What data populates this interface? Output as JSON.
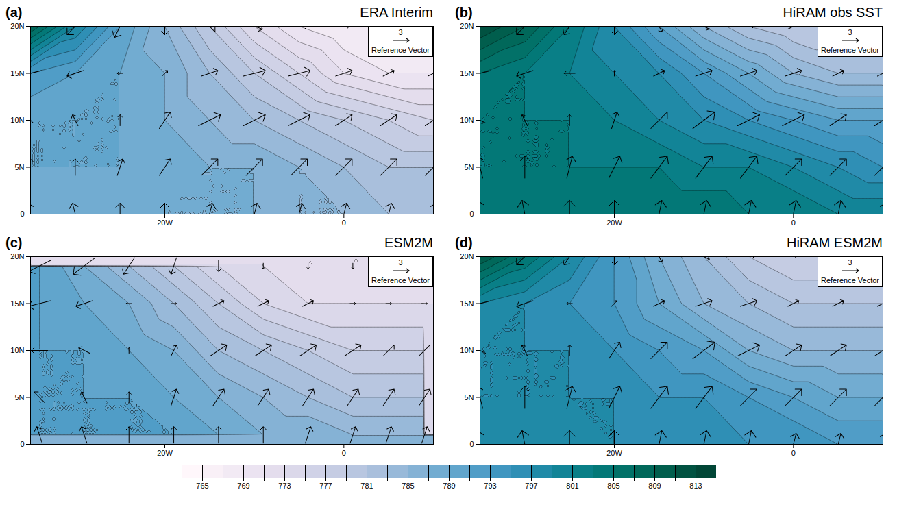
{
  "chart_data": [
    {
      "type": "contour",
      "panel": "(a)",
      "title": "ERA Interim",
      "lon": [
        -35,
        -30,
        -25,
        -20,
        -15,
        -10,
        -5,
        0,
        5,
        10
      ],
      "lat": [
        0,
        5,
        10,
        15,
        20
      ],
      "values": [
        [
          787,
          787,
          787,
          787,
          787,
          787,
          785,
          785,
          783,
          783
        ],
        [
          789,
          789,
          789,
          789,
          787,
          787,
          785,
          783,
          781,
          781
        ],
        [
          789,
          789,
          789,
          787,
          785,
          783,
          781,
          779,
          777,
          775
        ],
        [
          793,
          791,
          789,
          787,
          783,
          779,
          775,
          771,
          769,
          769
        ],
        [
          809,
          799,
          791,
          785,
          779,
          773,
          769,
          767,
          767,
          767
        ]
      ],
      "u": [
        [
          -1,
          -1,
          0,
          0,
          1,
          1,
          1,
          1,
          1,
          1
        ],
        [
          0,
          0,
          1,
          2,
          3,
          3,
          3,
          3,
          3,
          3
        ],
        [
          -1,
          -1,
          0,
          2,
          4,
          4,
          4,
          3,
          3,
          3
        ],
        [
          -4,
          -3,
          -1,
          1,
          3,
          4,
          4,
          3,
          2,
          2
        ],
        [
          -4,
          -3,
          -2,
          0,
          2,
          3,
          3,
          2,
          1,
          1
        ]
      ],
      "v": [
        [
          4,
          4,
          4,
          4,
          4,
          4,
          4,
          4,
          4,
          4
        ],
        [
          3,
          3,
          3,
          3,
          3,
          3,
          3,
          3,
          3,
          3
        ],
        [
          1,
          2,
          2,
          3,
          2,
          2,
          2,
          2,
          2,
          2
        ],
        [
          -1,
          -1,
          0,
          1,
          1,
          1,
          1,
          1,
          1,
          1
        ],
        [
          -3,
          -3,
          -4,
          -3,
          -2,
          -1,
          0,
          0,
          0,
          0
        ]
      ],
      "xlim": [
        -35,
        10
      ],
      "ylim": [
        0,
        20
      ],
      "xticks": [
        {
          "value": -20,
          "label": "20W"
        },
        0
      ],
      "yticks": [
        0,
        {
          "value": 5,
          "label": "5N"
        },
        {
          "value": 10,
          "label": "10N"
        },
        {
          "value": 15,
          "label": "15N"
        },
        {
          "value": 20,
          "label": "20N"
        }
      ],
      "reference_vector": {
        "value": 3,
        "label": "Reference Vector"
      }
    },
    {
      "type": "contour",
      "panel": "(b)",
      "title": "HiRAM obs SST",
      "lon": [
        -35,
        -30,
        -25,
        -20,
        -15,
        -10,
        -5,
        0,
        5,
        10
      ],
      "lat": [
        0,
        5,
        10,
        15,
        20
      ],
      "values": [
        [
          805,
          805,
          805,
          805,
          805,
          805,
          803,
          803,
          801,
          801
        ],
        [
          803,
          803,
          803,
          803,
          803,
          801,
          801,
          799,
          797,
          795
        ],
        [
          803,
          803,
          803,
          801,
          799,
          797,
          795,
          793,
          791,
          791
        ],
        [
          805,
          803,
          801,
          799,
          797,
          793,
          789,
          785,
          783,
          783
        ],
        [
          813,
          809,
          803,
          797,
          791,
          785,
          781,
          779,
          779,
          779
        ]
      ],
      "u": [
        [
          -1,
          -1,
          0,
          0,
          1,
          1,
          1,
          1,
          1,
          1
        ],
        [
          -1,
          0,
          1,
          2,
          3,
          3,
          3,
          3,
          3,
          3
        ],
        [
          -2,
          -1,
          0,
          1,
          3,
          4,
          4,
          4,
          3,
          3
        ],
        [
          -4,
          -3,
          -2,
          0,
          2,
          3,
          3,
          3,
          2,
          2
        ],
        [
          -4,
          -3,
          -2,
          0,
          1,
          2,
          2,
          2,
          1,
          1
        ]
      ],
      "v": [
        [
          5,
          5,
          5,
          5,
          5,
          5,
          5,
          5,
          5,
          4
        ],
        [
          4,
          4,
          4,
          4,
          4,
          4,
          4,
          3,
          3,
          3
        ],
        [
          1,
          2,
          2,
          3,
          3,
          3,
          2,
          2,
          2,
          2
        ],
        [
          -1,
          -1,
          0,
          1,
          1,
          1,
          1,
          1,
          1,
          1
        ],
        [
          -3,
          -3,
          -3,
          -3,
          -2,
          -1,
          0,
          1,
          1,
          1
        ]
      ],
      "xlim": [
        -35,
        10
      ],
      "ylim": [
        0,
        20
      ],
      "xticks": [
        {
          "value": -20,
          "label": "20W"
        },
        0
      ],
      "yticks": [
        0,
        {
          "value": 5,
          "label": "5N"
        },
        {
          "value": 10,
          "label": "10N"
        },
        {
          "value": 15,
          "label": "15N"
        },
        {
          "value": 20,
          "label": "20N"
        }
      ],
      "reference_vector": {
        "value": 3,
        "label": "Reference Vector"
      }
    },
    {
      "type": "contour",
      "panel": "(c)",
      "title": "ESM2M",
      "lon": [
        -34,
        -29,
        -24,
        -19,
        -14,
        -9,
        -4,
        1,
        5,
        9
      ],
      "lat": [
        1,
        5,
        10,
        15,
        19
      ],
      "values": [
        [
          791,
          791,
          791,
          791,
          789,
          787,
          787,
          785,
          785,
          785
        ],
        [
          791,
          791,
          791,
          789,
          787,
          785,
          783,
          781,
          781,
          781
        ],
        [
          791,
          791,
          789,
          787,
          783,
          781,
          779,
          777,
          777,
          777
        ],
        [
          791,
          789,
          787,
          783,
          779,
          775,
          773,
          773,
          773,
          773
        ],
        [
          791,
          787,
          783,
          779,
          775,
          773,
          771,
          771,
          771,
          771
        ]
      ],
      "u": [
        [
          -1,
          -1,
          0,
          0,
          0,
          0,
          1,
          1,
          1,
          1
        ],
        [
          -2,
          -1,
          0,
          1,
          2,
          2,
          2,
          2,
          2,
          2
        ],
        [
          -3,
          -2,
          0,
          1,
          3,
          3,
          3,
          3,
          2,
          2
        ],
        [
          -4,
          -3,
          -1,
          1,
          2,
          2,
          2,
          1,
          1,
          1
        ],
        [
          -4,
          -4,
          -2,
          -1,
          0,
          0,
          0,
          0,
          0,
          0
        ]
      ],
      "v": [
        [
          3,
          3,
          3,
          3,
          3,
          3,
          3,
          3,
          3,
          3
        ],
        [
          2,
          2,
          2,
          3,
          3,
          3,
          3,
          3,
          3,
          3
        ],
        [
          0,
          1,
          1,
          2,
          2,
          2,
          2,
          2,
          2,
          2
        ],
        [
          -1,
          -1,
          0,
          0,
          1,
          1,
          1,
          0,
          0,
          0
        ],
        [
          -2,
          -3,
          -3,
          -3,
          -2,
          -1,
          -1,
          -1,
          -1,
          -1
        ]
      ],
      "xlim": [
        -35,
        10
      ],
      "ylim": [
        0,
        20
      ],
      "xticks": [
        {
          "value": -20,
          "label": "20W"
        },
        0
      ],
      "yticks": [
        0,
        {
          "value": 5,
          "label": "5N"
        },
        {
          "value": 10,
          "label": "10N"
        },
        {
          "value": 15,
          "label": "15N"
        },
        {
          "value": 20,
          "label": "20N"
        }
      ],
      "reference_vector": {
        "value": 3,
        "label": "Reference Vector"
      }
    },
    {
      "type": "contour",
      "panel": "(d)",
      "title": "HiRAM ESM2M",
      "lon": [
        -35,
        -30,
        -25,
        -20,
        -15,
        -10,
        -5,
        0,
        5,
        10
      ],
      "lat": [
        0,
        5,
        10,
        15,
        20
      ],
      "values": [
        [
          799,
          799,
          799,
          797,
          797,
          797,
          795,
          795,
          793,
          793
        ],
        [
          797,
          797,
          797,
          797,
          795,
          795,
          793,
          791,
          789,
          789
        ],
        [
          797,
          797,
          797,
          795,
          793,
          791,
          787,
          785,
          785,
          785
        ],
        [
          799,
          797,
          795,
          793,
          789,
          785,
          783,
          781,
          781,
          781
        ],
        [
          811,
          805,
          799,
          793,
          787,
          783,
          779,
          777,
          777,
          777
        ]
      ],
      "u": [
        [
          -1,
          -1,
          0,
          0,
          1,
          1,
          1,
          1,
          1,
          1
        ],
        [
          -1,
          0,
          1,
          2,
          3,
          3,
          3,
          3,
          3,
          3
        ],
        [
          -2,
          -1,
          0,
          2,
          3,
          4,
          4,
          3,
          3,
          3
        ],
        [
          -4,
          -3,
          -1,
          1,
          2,
          3,
          3,
          2,
          2,
          2
        ],
        [
          -4,
          -3,
          -2,
          0,
          1,
          2,
          2,
          1,
          1,
          1
        ]
      ],
      "v": [
        [
          5,
          5,
          5,
          5,
          5,
          5,
          5,
          4,
          4,
          4
        ],
        [
          4,
          4,
          4,
          4,
          4,
          4,
          3,
          3,
          3,
          3
        ],
        [
          1,
          2,
          2,
          3,
          3,
          3,
          2,
          2,
          2,
          2
        ],
        [
          -1,
          -1,
          0,
          1,
          1,
          1,
          1,
          1,
          1,
          1
        ],
        [
          -3,
          -3,
          -3,
          -3,
          -2,
          -1,
          0,
          0,
          0,
          0
        ]
      ],
      "xlim": [
        -35,
        10
      ],
      "ylim": [
        0,
        20
      ],
      "xticks": [
        {
          "value": -20,
          "label": "20W"
        },
        0
      ],
      "yticks": [
        0,
        {
          "value": 5,
          "label": "5N"
        },
        {
          "value": 10,
          "label": "10N"
        },
        {
          "value": 15,
          "label": "15N"
        },
        {
          "value": 20,
          "label": "20N"
        }
      ],
      "reference_vector": {
        "value": 3,
        "label": "Reference Vector"
      }
    }
  ],
  "colorbar": {
    "levels": [
      765,
      767,
      769,
      771,
      773,
      775,
      777,
      779,
      781,
      783,
      785,
      787,
      789,
      791,
      793,
      795,
      797,
      799,
      801,
      803,
      805,
      807,
      809,
      811,
      813
    ],
    "ticks": [
      765,
      769,
      773,
      777,
      781,
      785,
      789,
      793,
      797,
      801,
      805,
      809,
      813
    ]
  }
}
